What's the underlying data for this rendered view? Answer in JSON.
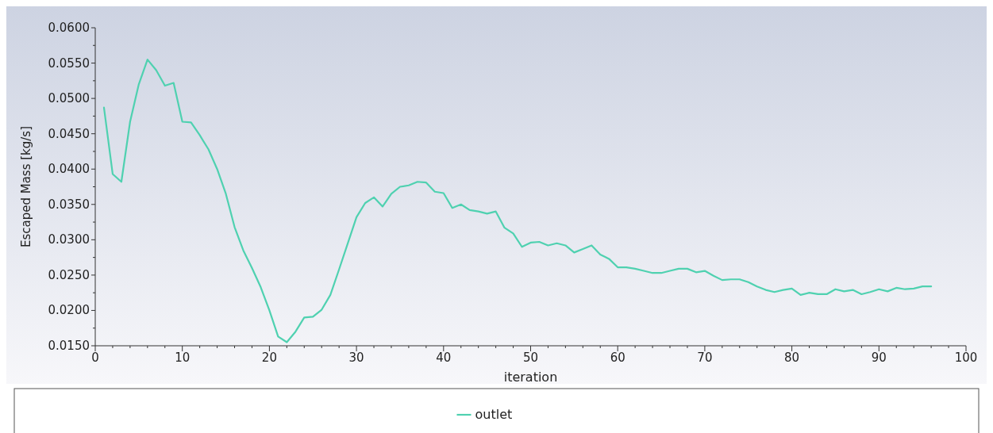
{
  "chart_data": {
    "type": "line",
    "xlabel": "iteration",
    "ylabel": "Escaped Mass [kg/s]",
    "x": [
      1,
      2,
      3,
      4,
      5,
      6,
      7,
      8,
      9,
      10,
      11,
      12,
      13,
      14,
      15,
      16,
      17,
      18,
      19,
      20,
      21,
      22,
      23,
      24,
      25,
      26,
      27,
      28,
      29,
      30,
      31,
      32,
      33,
      34,
      35,
      36,
      37,
      38,
      39,
      40,
      41,
      42,
      43,
      44,
      45,
      46,
      47,
      48,
      49,
      50,
      51,
      52,
      53,
      54,
      55,
      56,
      57,
      58,
      59,
      60,
      61,
      62,
      63,
      64,
      65,
      66,
      67,
      68,
      69,
      70,
      71,
      72,
      73,
      74,
      75,
      76,
      77,
      78,
      79,
      80,
      81,
      82,
      83,
      84,
      85,
      86,
      87,
      88,
      89,
      90,
      91,
      92,
      93,
      94,
      95,
      96
    ],
    "series": [
      {
        "name": "outlet",
        "color": "#4fd1b0",
        "values": [
          0.0487,
          0.0393,
          0.0382,
          0.0467,
          0.052,
          0.0555,
          0.054,
          0.0518,
          0.0522,
          0.0467,
          0.0466,
          0.0448,
          0.0428,
          0.04,
          0.0365,
          0.0318,
          0.0285,
          0.026,
          0.0233,
          0.02,
          0.0163,
          0.0155,
          0.017,
          0.019,
          0.0191,
          0.0201,
          0.0222,
          0.0258,
          0.0295,
          0.0332,
          0.0352,
          0.036,
          0.0347,
          0.0365,
          0.0375,
          0.0377,
          0.0382,
          0.0381,
          0.0368,
          0.0366,
          0.0345,
          0.035,
          0.0342,
          0.034,
          0.0337,
          0.034,
          0.0317,
          0.0309,
          0.029,
          0.0296,
          0.0297,
          0.0292,
          0.0295,
          0.0292,
          0.0282,
          0.0287,
          0.0292,
          0.0279,
          0.0273,
          0.0261,
          0.0261,
          0.0259,
          0.0256,
          0.0253,
          0.0253,
          0.0256,
          0.0259,
          0.0259,
          0.0254,
          0.0256,
          0.0249,
          0.0243,
          0.0244,
          0.0244,
          0.024,
          0.0234,
          0.0229,
          0.0226,
          0.0229,
          0.0231,
          0.0222,
          0.0225,
          0.0223,
          0.0223,
          0.023,
          0.0227,
          0.0229,
          0.0223,
          0.0226,
          0.023,
          0.0227,
          0.0232,
          0.023,
          0.0231,
          0.0234,
          0.0234
        ]
      }
    ],
    "xlim": [
      0,
      100
    ],
    "xticks": [
      0,
      10,
      20,
      30,
      40,
      50,
      60,
      70,
      80,
      90,
      100
    ],
    "ylim": [
      0.015,
      0.06
    ],
    "yticks": [
      {
        "value": 0.015,
        "label": "0.0150"
      },
      {
        "value": 0.02,
        "label": "0.0200"
      },
      {
        "value": 0.025,
        "label": "0.0250"
      },
      {
        "value": 0.03,
        "label": "0.0300"
      },
      {
        "value": 0.035,
        "label": "0.0350"
      },
      {
        "value": 0.04,
        "label": "0.0400"
      },
      {
        "value": 0.045,
        "label": "0.0450"
      },
      {
        "value": 0.05,
        "label": "0.0500"
      },
      {
        "value": 0.055,
        "label": "0.0550"
      },
      {
        "value": 0.06,
        "label": "0.0600"
      }
    ],
    "legend": "bottom",
    "marker": "none",
    "line_style": "solid"
  }
}
